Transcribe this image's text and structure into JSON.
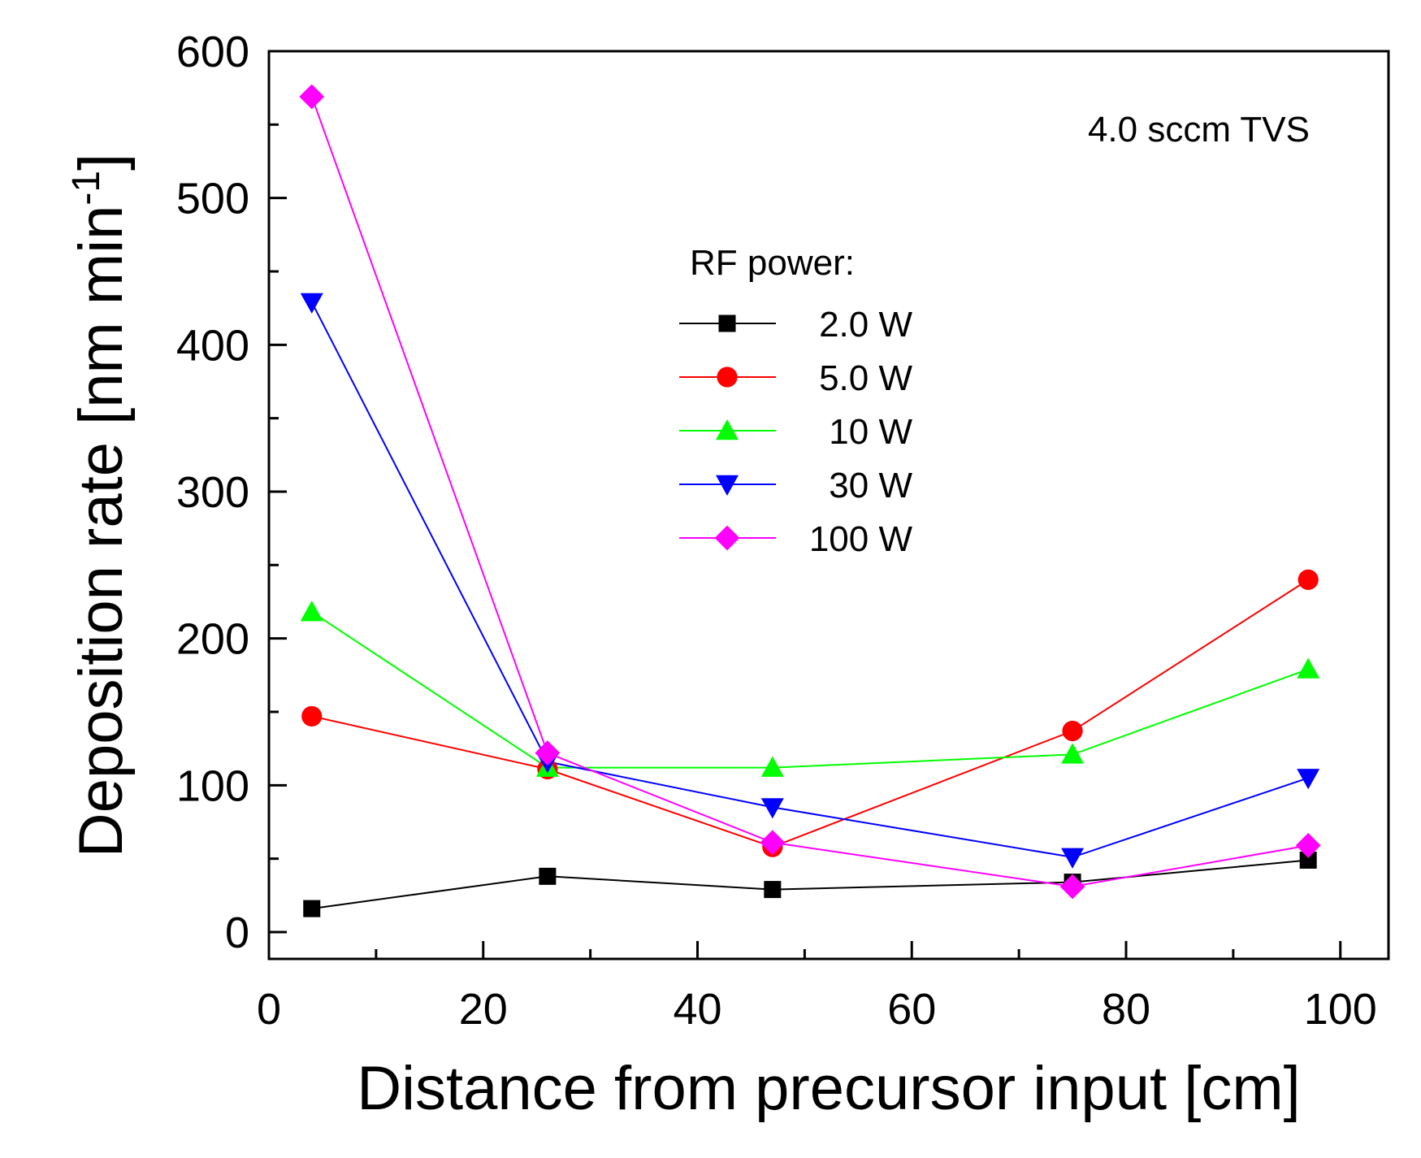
{
  "chart_data": {
    "type": "line",
    "title": "",
    "xlabel": "Distance from precursor input [cm]",
    "ylabel_main": "Deposition rate [nm min",
    "ylabel_sup": "-1",
    "ylabel_close": "]",
    "xlim": [
      0,
      105
    ],
    "ylim": [
      -20,
      600
    ],
    "xticks": [
      0,
      20,
      40,
      60,
      80,
      100
    ],
    "yticks": [
      0,
      100,
      200,
      300,
      400,
      500,
      600
    ],
    "xtick_labels": [
      "0",
      "20",
      "40",
      "60",
      "80",
      "100"
    ],
    "ytick_labels": [
      "0",
      "100",
      "200",
      "300",
      "400",
      "500",
      "600"
    ],
    "annotation": "4.0 sccm TVS",
    "legend_title": "RF power:",
    "legend_position": "upper-center",
    "x": [
      4,
      26,
      47,
      75,
      97
    ],
    "series": [
      {
        "name": "2.0 W",
        "color": "#000000",
        "marker": "square",
        "values": [
          16,
          38,
          29,
          34,
          49
        ]
      },
      {
        "name": "5.0 W",
        "color": "#ff0000",
        "marker": "circle",
        "values": [
          147,
          111,
          58,
          137,
          240
        ]
      },
      {
        "name": "10 W",
        "color": "#00ff00",
        "marker": "triangle-up",
        "values": [
          218,
          112,
          112,
          121,
          179
        ]
      },
      {
        "name": "30 W",
        "color": "#0000ff",
        "marker": "triangle-down",
        "values": [
          429,
          116,
          85,
          51,
          105
        ]
      },
      {
        "name": "100 W",
        "color": "#ff00ff",
        "marker": "diamond",
        "values": [
          569,
          122,
          61,
          31,
          59
        ]
      }
    ]
  }
}
